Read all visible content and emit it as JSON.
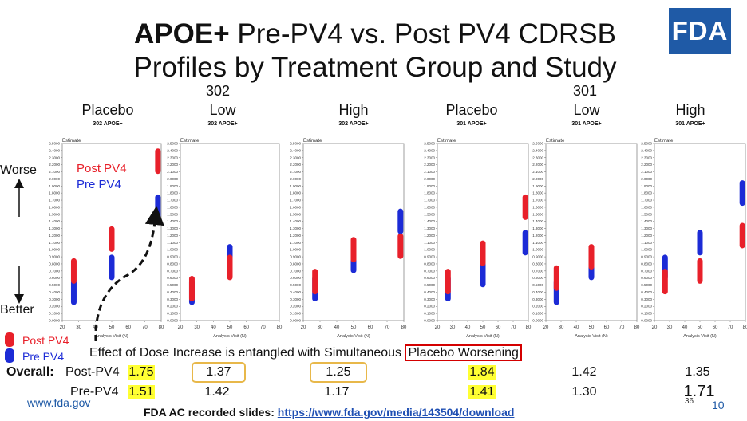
{
  "title": {
    "bold": "APOE+",
    "rest": " Pre-PV4 vs. Post PV4 CDRSB",
    "line2": "Profiles by Treatment Group and Study"
  },
  "logo": "FDA",
  "studies": {
    "left": "302",
    "right": "301"
  },
  "groups": [
    {
      "label": "Placebo",
      "sub": "302 APOE+"
    },
    {
      "label": "Low",
      "sub": "302 APOE+"
    },
    {
      "label": "High",
      "sub": "302 APOE+"
    },
    {
      "label": "Placebo",
      "sub": "301 APOE+"
    },
    {
      "label": "Low",
      "sub": "301 APOE+"
    },
    {
      "label": "High",
      "sub": "301 APOE+"
    }
  ],
  "side": {
    "worse": "Worse",
    "better": "Better"
  },
  "legend": {
    "post": "Post PV4",
    "pre": "Pre PV4"
  },
  "colors": {
    "post": "#e8202a",
    "pre": "#1c2bd6",
    "highlight": "#ffff33",
    "box_yellow": "#e8b84a",
    "box_red": "#d40000"
  },
  "effect_text": {
    "before": "Effect of Dose Increase is entangled with Simultaneous ",
    "boxed": "Placebo Worsening"
  },
  "table": {
    "overall_label": "Overall:",
    "post_label": "Post-PV4",
    "pre_label": "Pre-PV4",
    "post": [
      "1.75",
      "1.37",
      "1.25",
      "1.84",
      "1.42",
      "1.35"
    ],
    "pre": [
      "1.51",
      "1.42",
      "1.17",
      "1.41",
      "1.30",
      "1.71"
    ]
  },
  "url": "www.fda.gov",
  "page_num": "10",
  "page_num_small": "36",
  "footer": {
    "label": "FDA AC recorded slides: ",
    "link": "https://www.fda.gov/media/143504/download"
  },
  "chart_data": [
    {
      "type": "scatter",
      "title": "302 APOE+ Placebo",
      "ylabel": "Estimate",
      "xlabel": "Analysis Visit (N)",
      "xlim": [
        20,
        80
      ],
      "ylim": [
        0,
        2.5
      ],
      "series": [
        {
          "name": "Pre PV4",
          "points": [
            [
              27,
              0.4
            ],
            [
              50,
              0.75
            ],
            [
              78,
              1.6
            ]
          ]
        },
        {
          "name": "Post PV4",
          "points": [
            [
              27,
              0.7
            ],
            [
              50,
              1.15
            ],
            [
              78,
              2.25
            ]
          ]
        }
      ]
    },
    {
      "type": "scatter",
      "title": "302 APOE+ Low",
      "ylabel": "Estimate",
      "xlabel": "Analysis Visit (N)",
      "xlim": [
        20,
        80
      ],
      "ylim": [
        0,
        2.5
      ],
      "series": [
        {
          "name": "Pre PV4",
          "points": [
            [
              27,
              0.4
            ],
            [
              50,
              0.9
            ]
          ]
        },
        {
          "name": "Post PV4",
          "points": [
            [
              27,
              0.45
            ],
            [
              50,
              0.75
            ]
          ]
        }
      ]
    },
    {
      "type": "scatter",
      "title": "302 APOE+ High",
      "ylabel": "Estimate",
      "xlabel": "Analysis Visit (N)",
      "xlim": [
        20,
        80
      ],
      "ylim": [
        0,
        2.5
      ],
      "series": [
        {
          "name": "Pre PV4",
          "points": [
            [
              27,
              0.45
            ],
            [
              50,
              0.85
            ],
            [
              78,
              1.4
            ]
          ]
        },
        {
          "name": "Post PV4",
          "points": [
            [
              27,
              0.55
            ],
            [
              50,
              1.0
            ],
            [
              78,
              1.05
            ]
          ]
        }
      ]
    },
    {
      "type": "scatter",
      "title": "301 APOE+ Placebo",
      "ylabel": "Estimate",
      "xlabel": "Analysis Visit (N)",
      "xlim": [
        20,
        80
      ],
      "ylim": [
        0,
        2.5
      ],
      "series": [
        {
          "name": "Pre PV4",
          "points": [
            [
              27,
              0.45
            ],
            [
              50,
              0.65
            ],
            [
              78,
              1.1
            ]
          ]
        },
        {
          "name": "Post PV4",
          "points": [
            [
              27,
              0.55
            ],
            [
              50,
              0.95
            ],
            [
              78,
              1.6
            ]
          ]
        }
      ]
    },
    {
      "type": "scatter",
      "title": "301 APOE+ Low",
      "ylabel": "Estimate",
      "xlabel": "Analysis Visit (N)",
      "xlim": [
        20,
        80
      ],
      "ylim": [
        0,
        2.5
      ],
      "series": [
        {
          "name": "Pre PV4",
          "points": [
            [
              27,
              0.4
            ],
            [
              50,
              0.75
            ]
          ]
        },
        {
          "name": "Post PV4",
          "points": [
            [
              27,
              0.6
            ],
            [
              50,
              0.9
            ]
          ]
        }
      ]
    },
    {
      "type": "scatter",
      "title": "301 APOE+ High",
      "ylabel": "Estimate",
      "xlabel": "Analysis Visit (N)",
      "xlim": [
        20,
        80
      ],
      "ylim": [
        0,
        2.5
      ],
      "series": [
        {
          "name": "Pre PV4",
          "points": [
            [
              27,
              0.75
            ],
            [
              50,
              1.1
            ],
            [
              78,
              1.8
            ]
          ]
        },
        {
          "name": "Post PV4",
          "points": [
            [
              27,
              0.55
            ],
            [
              50,
              0.7
            ],
            [
              78,
              1.2
            ]
          ]
        }
      ]
    }
  ]
}
